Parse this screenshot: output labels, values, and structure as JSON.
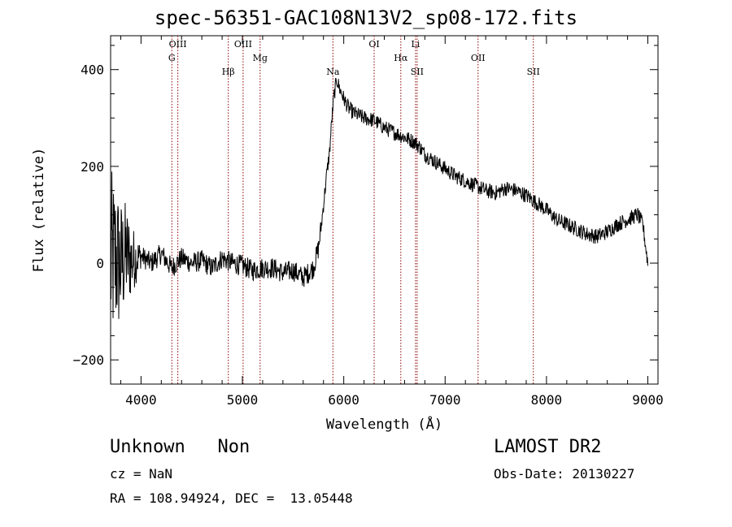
{
  "chart_data": {
    "type": "line",
    "title": "spec-56351-GAC108N13V2_sp08-172.fits",
    "xlabel": "Wavelength (Å)",
    "ylabel": "Flux (relative)",
    "xlim": [
      3700,
      9100
    ],
    "ylim": [
      -250,
      470
    ],
    "xticks": [
      4000,
      5000,
      6000,
      7000,
      8000,
      9000
    ],
    "yticks": [
      -200,
      0,
      200,
      400
    ],
    "grid": false,
    "line_color": "#000000",
    "marker_color": "#8b0000",
    "series": [
      {
        "x": [
          3700,
          3750,
          3800,
          3850,
          3900,
          3950,
          4000,
          4100,
          4200,
          4300,
          4400,
          4500,
          4600,
          4700,
          4800,
          4900,
          5000,
          5100,
          5200,
          5300,
          5400,
          5500,
          5600,
          5650,
          5700,
          5750,
          5780,
          5800,
          5830,
          5860,
          5880,
          5900,
          5930,
          5960,
          6000,
          6050,
          6100,
          6200,
          6300,
          6400,
          6500,
          6600,
          6700,
          6750,
          6800,
          6900,
          7000,
          7100,
          7200,
          7300,
          7400,
          7500,
          7600,
          7700,
          7800,
          7900,
          8000,
          8100,
          8200,
          8300,
          8400,
          8500,
          8600,
          8700,
          8800,
          8900,
          8950,
          9000
        ],
        "y": [
          0,
          10,
          -5,
          20,
          5,
          10,
          15,
          0,
          20,
          -10,
          10,
          0,
          5,
          -10,
          10,
          0,
          -5,
          -15,
          -10,
          -10,
          -20,
          -15,
          -30,
          -20,
          -10,
          30,
          80,
          120,
          180,
          230,
          290,
          340,
          380,
          360,
          340,
          320,
          310,
          300,
          295,
          280,
          270,
          260,
          250,
          240,
          225,
          210,
          195,
          180,
          170,
          160,
          150,
          145,
          155,
          150,
          140,
          125,
          110,
          90,
          80,
          70,
          60,
          55,
          65,
          80,
          90,
          100,
          80,
          0
        ]
      }
    ],
    "spectral_lines": [
      {
        "label": "OIII",
        "wavelength": 4363
      },
      {
        "label": "G",
        "wavelength": 4304
      },
      {
        "label": "Hβ",
        "wavelength": 4861
      },
      {
        "label": "OIII",
        "wavelength": 5007
      },
      {
        "label": "Mg",
        "wavelength": 5175
      },
      {
        "label": "Na",
        "wavelength": 5893
      },
      {
        "label": "OI",
        "wavelength": 6300
      },
      {
        "label": "Hα",
        "wavelength": 6563
      },
      {
        "label": "SII",
        "wavelength": 6724
      },
      {
        "label": "Li",
        "wavelength": 6708
      },
      {
        "label": "OII",
        "wavelength": 7325
      },
      {
        "label": "SII",
        "wavelength": 7870
      }
    ]
  },
  "info": {
    "class_text": "Unknown   Non",
    "cz_text": "cz = NaN",
    "radec_text": "RA = 108.94924, DEC =  13.05448",
    "survey_text": "LAMOST DR2",
    "obs_text": "Obs-Date: 20130227"
  }
}
